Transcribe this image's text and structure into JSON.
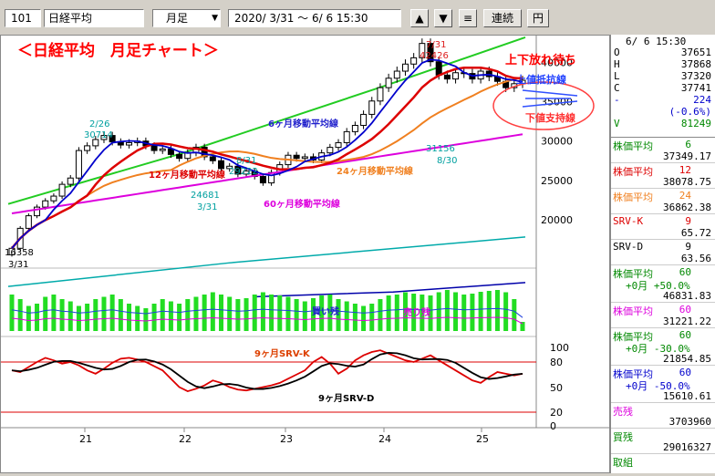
{
  "toolbar": {
    "code": "101",
    "name": "日経平均",
    "period": "月足",
    "date_range": "2020/ 3/31 〜  6/ 6 15:30",
    "up_arrow": "▲",
    "down_arrow": "▼",
    "menu_glyph": "≡",
    "continuous_label": "連続",
    "yen_label": "円"
  },
  "chart": {
    "title": "＜日経平均　月足チャート＞",
    "annotation_wait": "上下放れ待ち",
    "annotation_resist": "上値抵抗線",
    "annotation_support": "下値支持線",
    "ma6_label": "6ヶ月移動平均線",
    "ma12_label": "12ヶ月移動平均線",
    "ma24_label": "24ヶ月移動平均線",
    "ma60_label": "60ヶ月移動平均線",
    "buy_label": "買い残",
    "sell_label": "売り残",
    "srvk_label": "9ヶ月SRV-K",
    "srvd_label": "9ヶ月SRV-D",
    "price_labels": [
      {
        "text": "16358",
        "sub": "3/31"
      },
      {
        "text": "2/26",
        "sub": "30714"
      },
      {
        "text": "8/31",
        "sub": "29222"
      },
      {
        "text": "24681",
        "sub": "3/31"
      },
      {
        "text": "7/31",
        "sub": "42426"
      },
      {
        "text": "31156",
        "sub": "8/30"
      }
    ],
    "y_ticks": [
      "40000",
      "35000",
      "30000",
      "25000",
      "20000"
    ],
    "osc_ticks": [
      "100",
      "80",
      "50",
      "20",
      "0"
    ],
    "x_ticks": [
      "21",
      "22",
      "23",
      "24",
      "25"
    ]
  },
  "colors": {
    "ma6": "#0000cc",
    "ma12": "#dd0000",
    "ma24": "#f08020",
    "ma60": "#dd00dd",
    "upper": "#22cc22",
    "band2": "#00aaaa",
    "band3": "#0000aa",
    "vol": "#22dd22",
    "srvk": "#dd0000",
    "srvd": "#000000",
    "title": "#ff0000"
  },
  "chart_data": {
    "type": "candlestick",
    "y_range": [
      15000,
      42500
    ],
    "candles": [
      16358,
      18900,
      20500,
      21600,
      22400,
      23000,
      24500,
      25300,
      28800,
      29400,
      30200,
      30714,
      29900,
      29500,
      29800,
      30000,
      29400,
      28800,
      29000,
      28300,
      27800,
      28500,
      29222,
      28000,
      27500,
      26500,
      26800,
      25800,
      26200,
      25500,
      24681,
      26000,
      27000,
      28200,
      27800,
      28000,
      27600,
      28500,
      29200,
      29800,
      31200,
      32000,
      33400,
      35100,
      36800,
      38000,
      38900,
      39800,
      40600,
      42426,
      40100,
      38400,
      37900,
      38700,
      38600,
      37900,
      38900,
      38200,
      37600,
      36800,
      37300,
      37741
    ],
    "info_panel": {
      "date": "6/ 6 15:30",
      "O": "37651",
      "H": "37868",
      "L": "37320",
      "C": "37741",
      "change": "224",
      "change_pct": "(-0.6%)",
      "V": "81249"
    },
    "indicators": [
      {
        "name": "株価平均",
        "period": "6",
        "value": "37349.17",
        "color": "#008800"
      },
      {
        "name": "株価平均",
        "period": "12",
        "value": "38078.75",
        "color": "#dd0000"
      },
      {
        "name": "株価平均",
        "period": "24",
        "value": "36862.38",
        "color": "#f08020"
      },
      {
        "name": "SRV-K",
        "period": "9",
        "value": "65.72",
        "color": "#dd0000"
      },
      {
        "name": "SRV-D",
        "period": "9",
        "value": "63.56",
        "color": "#000000"
      },
      {
        "name": "株価平均",
        "period": "60",
        "sub": "+0月 +50.0%",
        "value": "46831.83",
        "color": "#008800"
      },
      {
        "name": "株価平均",
        "period": "60",
        "value": "31221.22",
        "color": "#dd00dd"
      },
      {
        "name": "株価平均",
        "period": "60",
        "sub": "+0月 -30.0%",
        "value": "21854.85",
        "color": "#008800"
      },
      {
        "name": "株価平均",
        "period": "60",
        "sub": "+0月 -50.0%",
        "value": "15610.61",
        "color": "#0000cc"
      },
      {
        "name": "売残",
        "value": "3703960",
        "color": "#dd00dd"
      },
      {
        "name": "買残",
        "value": "29016327",
        "color": "#008800"
      },
      {
        "name": "取組",
        "value": "",
        "color": "#008800"
      }
    ]
  }
}
